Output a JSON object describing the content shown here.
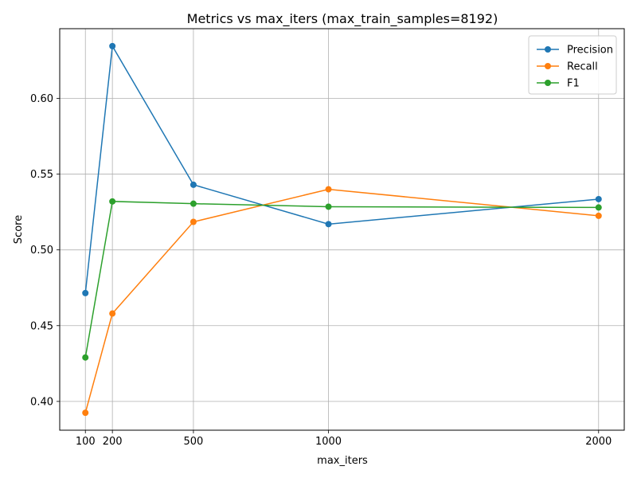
{
  "chart_data": {
    "type": "line",
    "title": "Metrics vs max_iters (max_train_samples=8192)",
    "xlabel": "max_iters",
    "ylabel": "Score",
    "x": [
      100,
      200,
      500,
      1000,
      2000
    ],
    "x_ticks": [
      100,
      200,
      500,
      1000,
      2000
    ],
    "y_ticks": [
      "0.40",
      "0.45",
      "0.50",
      "0.55",
      "0.60"
    ],
    "xlim": [
      5,
      2095
    ],
    "ylim": [
      0.381,
      0.646
    ],
    "grid": true,
    "legend_position": "upper-right",
    "series": [
      {
        "name": "Precision",
        "color": "#1f77b4",
        "values": [
          0.4715,
          0.6345,
          0.543,
          0.517,
          0.5335
        ]
      },
      {
        "name": "Recall",
        "color": "#ff7f0e",
        "values": [
          0.3925,
          0.458,
          0.5185,
          0.54,
          0.5225
        ]
      },
      {
        "name": "F1",
        "color": "#2ca02c",
        "values": [
          0.429,
          0.532,
          0.5305,
          0.5285,
          0.528
        ]
      }
    ]
  }
}
